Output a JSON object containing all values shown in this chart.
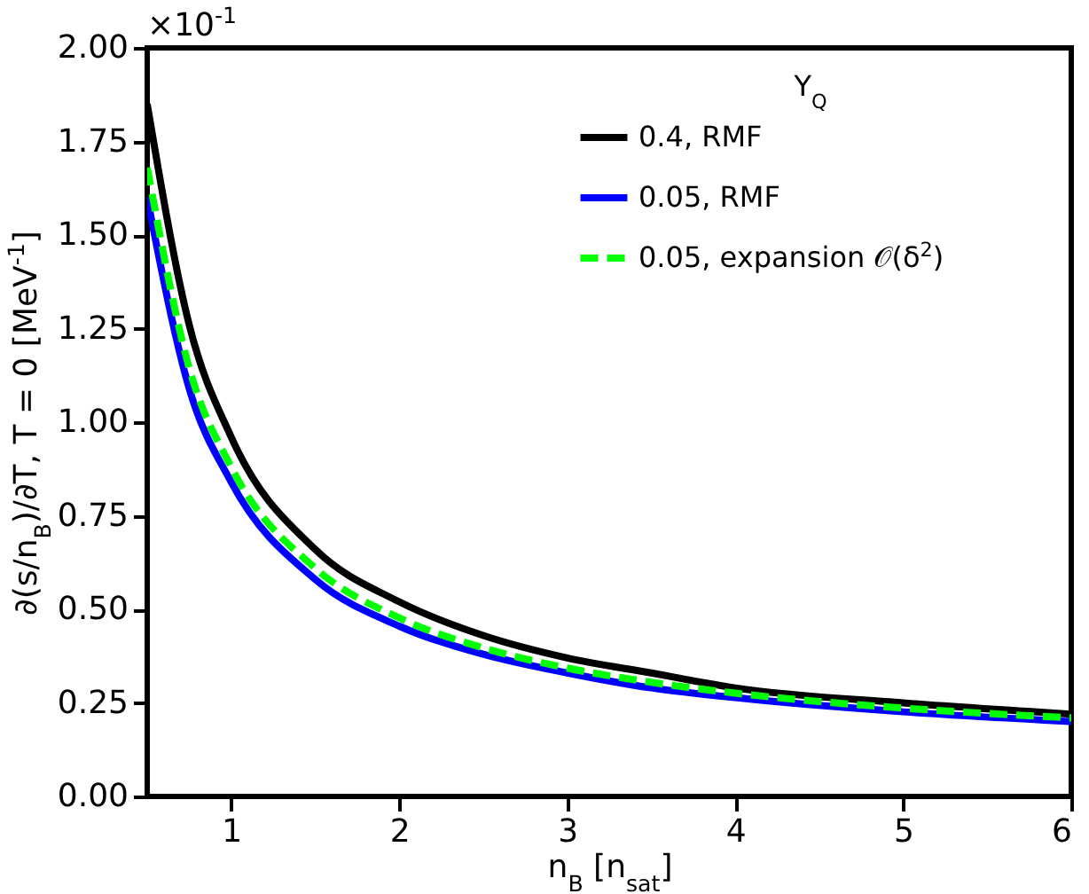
{
  "chart_data": {
    "type": "line",
    "xlabel": "n$_{B}$ [n$_{sat}$]",
    "ylabel": "∂(s/n$_{B}$)/∂T, T = 0 [MeV$^{-1}$]",
    "legend_title": "Y$_{Q}$",
    "annotations": [
      "×10$^{-1}$"
    ],
    "x": [
      0.5,
      0.75,
      1,
      1.5,
      2,
      2.5,
      3,
      3.5,
      4,
      5,
      6
    ],
    "series": [
      {
        "name": "0.4, RMF",
        "color": "#000000",
        "line_style": "solid",
        "values": [
          1.85,
          1.26,
          0.96,
          0.66,
          0.52,
          0.43,
          0.37,
          0.33,
          0.29,
          0.25,
          0.22
        ]
      },
      {
        "name": "0.05, RMF",
        "color": "#0000ff",
        "line_style": "solid",
        "values": [
          1.6,
          1.09,
          0.84,
          0.58,
          0.455,
          0.38,
          0.33,
          0.29,
          0.264,
          0.226,
          0.2
        ]
      },
      {
        "name": "0.05, expansion 𝒪(δ$^{2}$)",
        "color": "#00ff00",
        "line_style": "dashed",
        "values": [
          1.68,
          1.145,
          0.88,
          0.61,
          0.477,
          0.397,
          0.343,
          0.305,
          0.276,
          0.236,
          0.21
        ]
      }
    ],
    "xlim": [
      0.5,
      6
    ],
    "xticks": [
      1,
      2,
      3,
      4,
      5,
      6
    ],
    "ylim": [
      0,
      2
    ],
    "yticks": [
      {
        "value": 0,
        "label": "0.00"
      },
      0.25,
      {
        "value": 0.5,
        "label": "0.50"
      },
      0.75,
      {
        "value": 1,
        "label": "1.00"
      },
      1.25,
      {
        "value": 1.5,
        "label": "1.50"
      },
      1.75,
      {
        "value": 2,
        "label": "2.00"
      }
    ],
    "grid": false,
    "legend": "top right",
    "marker": "none"
  }
}
